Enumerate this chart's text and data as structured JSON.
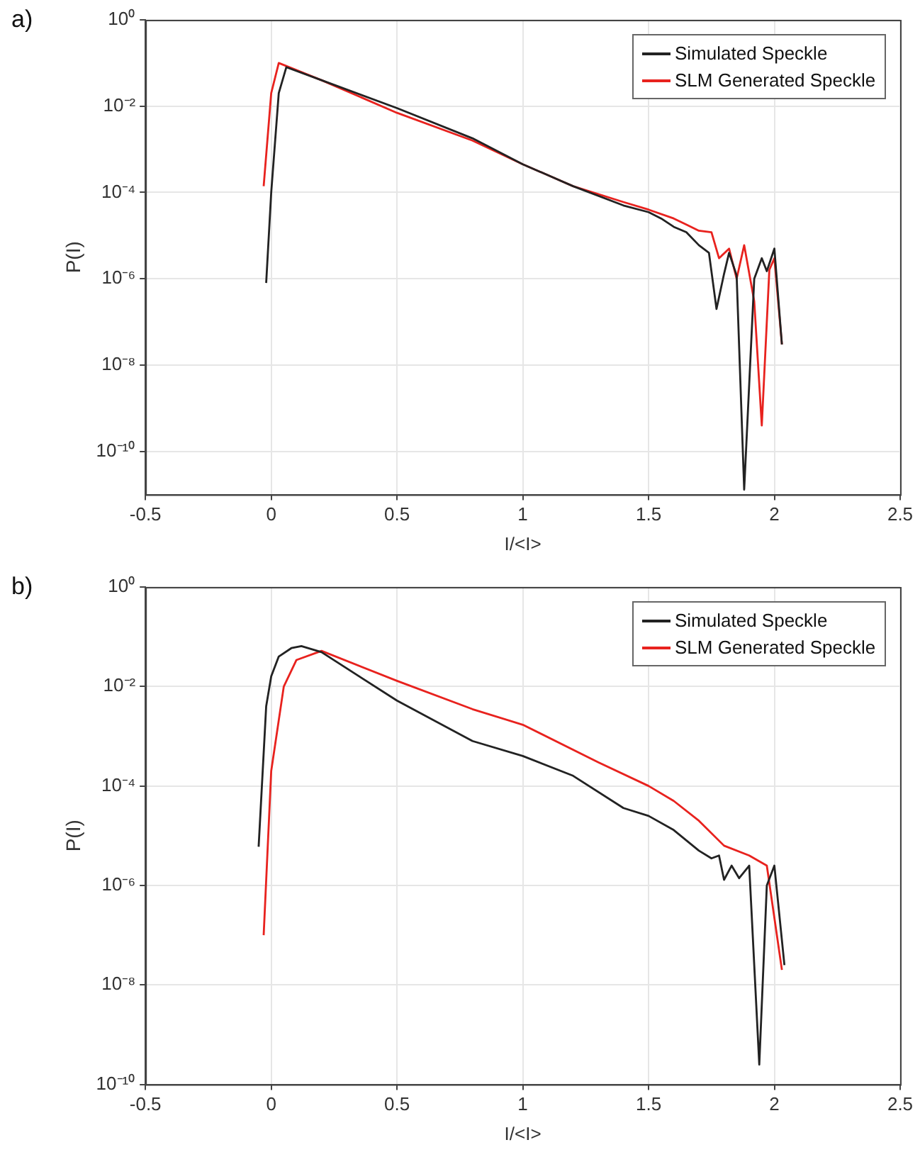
{
  "chart_data": [
    {
      "type": "line",
      "title": "a)",
      "xlabel": "I/<I>",
      "ylabel": "P(I)",
      "log": "y",
      "grid": true,
      "legend": "top right",
      "xlim": [
        -0.5,
        2.5
      ],
      "xticks": [
        -0.5,
        0,
        0.5,
        1,
        1.5,
        2,
        2.5
      ],
      "ylim": [
        1e-11,
        1
      ],
      "yticks": [
        {
          "value": 1,
          "label": "10⁰"
        },
        {
          "value": 0.01,
          "label": "10⁻²"
        },
        {
          "value": 0.0001,
          "label": "10⁻⁴"
        },
        {
          "value": 1e-06,
          "label": "10⁻⁶"
        },
        {
          "value": 1e-08,
          "label": "10⁻⁸"
        },
        {
          "value": 1e-10,
          "label": "10⁻¹⁰"
        }
      ],
      "series": [
        {
          "name": "Simulated Speckle",
          "color": "#222222",
          "x": [
            -0.02,
            0.0,
            0.03,
            0.06,
            0.2,
            0.5,
            0.8,
            1.0,
            1.2,
            1.4,
            1.5,
            1.55,
            1.6,
            1.65,
            1.7,
            1.74,
            1.77,
            1.8,
            1.82,
            1.85,
            1.88,
            1.92,
            1.95,
            1.97,
            2.0,
            2.03
          ],
          "values": [
            8e-07,
            0.0001,
            0.02,
            0.08,
            0.04,
            0.009,
            0.0018,
            0.00045,
            0.00014,
            5e-05,
            3.5e-05,
            2.5e-05,
            1.6e-05,
            1.2e-05,
            6e-06,
            4e-06,
            2e-07,
            1.3e-06,
            4e-06,
            1.2e-06,
            1.3e-11,
            1e-06,
            3e-06,
            1.5e-06,
            5e-06,
            3e-08
          ]
        },
        {
          "name": "SLM Generated Speckle",
          "color": "#e8221e",
          "x": [
            -0.03,
            0.0,
            0.03,
            0.06,
            0.2,
            0.5,
            0.8,
            1.0,
            1.2,
            1.4,
            1.5,
            1.6,
            1.65,
            1.7,
            1.75,
            1.78,
            1.82,
            1.85,
            1.88,
            1.92,
            1.95,
            1.98,
            2.0,
            2.03
          ],
          "values": [
            0.00014,
            0.02,
            0.1,
            0.085,
            0.04,
            0.007,
            0.0016,
            0.00045,
            0.00014,
            6e-05,
            4e-05,
            2.5e-05,
            1.8e-05,
            1.3e-05,
            1.2e-05,
            3e-06,
            5e-06,
            1e-06,
            6e-06,
            3e-07,
            4e-10,
            1.6e-06,
            3e-06,
            3e-08
          ]
        }
      ]
    },
    {
      "type": "line",
      "title": "b)",
      "xlabel": "I/<I>",
      "ylabel": "P(I)",
      "log": "y",
      "grid": true,
      "legend": "top right",
      "xlim": [
        -0.5,
        2.5
      ],
      "xticks": [
        -0.5,
        0,
        0.5,
        1,
        1.5,
        2,
        2.5
      ],
      "ylim": [
        1e-10,
        1
      ],
      "yticks": [
        {
          "value": 1,
          "label": "10⁰"
        },
        {
          "value": 0.01,
          "label": "10⁻²"
        },
        {
          "value": 0.0001,
          "label": "10⁻⁴"
        },
        {
          "value": 1e-06,
          "label": "10⁻⁶"
        },
        {
          "value": 1e-08,
          "label": "10⁻⁸"
        },
        {
          "value": 1e-10,
          "label": "10⁻¹⁰"
        }
      ],
      "series": [
        {
          "name": "Simulated Speckle",
          "color": "#222222",
          "x": [
            -0.05,
            -0.02,
            0.0,
            0.03,
            0.08,
            0.12,
            0.2,
            0.5,
            0.8,
            1.0,
            1.2,
            1.4,
            1.5,
            1.6,
            1.7,
            1.75,
            1.78,
            1.8,
            1.83,
            1.86,
            1.9,
            1.94,
            1.97,
            2.0,
            2.04
          ],
          "values": [
            6e-06,
            0.004,
            0.016,
            0.04,
            0.059,
            0.065,
            0.049,
            0.0052,
            0.0008,
            0.0004,
            0.00016,
            3.6e-05,
            2.5e-05,
            1.3e-05,
            5e-06,
            3.5e-06,
            4e-06,
            1.3e-06,
            2.5e-06,
            1.4e-06,
            2.5e-06,
            2.5e-10,
            1e-06,
            2.5e-06,
            2.5e-08
          ]
        },
        {
          "name": "SLM Generated Speckle",
          "color": "#e8221e",
          "x": [
            -0.03,
            0.0,
            0.05,
            0.1,
            0.2,
            0.5,
            0.8,
            1.0,
            1.3,
            1.5,
            1.6,
            1.7,
            1.8,
            1.9,
            1.97,
            2.03
          ],
          "values": [
            1e-07,
            0.0002,
            0.01,
            0.034,
            0.052,
            0.013,
            0.0035,
            0.0017,
            0.0003,
            0.0001,
            5e-05,
            2e-05,
            6.3e-06,
            4e-06,
            2.5e-06,
            2e-08
          ]
        }
      ]
    }
  ]
}
